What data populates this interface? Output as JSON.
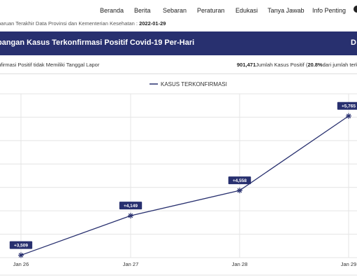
{
  "nav": {
    "items": [
      "Beranda",
      "Berita",
      "Sebaran",
      "Peraturan",
      "Edukasi",
      "Tanya Jawab",
      "Info Penting"
    ]
  },
  "update": {
    "label": "baruan Terakhir Data Provinsi dan Kementerian Kesehatan :",
    "date": "2022-01-29"
  },
  "banner": {
    "title": "bangan Kasus Terkonfirmasi Positif Covid-19 Per-Hari",
    "edge": "D"
  },
  "info": {
    "left": "nfirmasi Positif tidak Memiliki Tanggal Lapor",
    "total": "901,471",
    "total_text": "Jumlah Kasus Positif (",
    "percent": "20.8%",
    "percent_text": "dari jumlah terk"
  },
  "chart_data": {
    "type": "line",
    "legend": "KASUS TERKONFIRMASI",
    "categories": [
      "Jan 26",
      "Jan 27",
      "Jan 28",
      "Jan 29"
    ],
    "series": [
      {
        "name": "KASUS TERKONFIRMASI",
        "values": [
          3509,
          4149,
          4558,
          5765
        ],
        "labels": [
          "+3,509",
          "+4,149",
          "+4,558",
          "+5,765"
        ]
      }
    ],
    "ylim": [
      3470,
      6125
    ],
    "grid": true,
    "legend_position": "top-center",
    "colors": {
      "line": "#28306f",
      "label_bg": "#28306f",
      "grid": "#e4e4e4"
    }
  }
}
